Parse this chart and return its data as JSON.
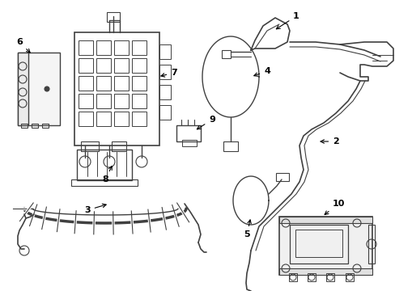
{
  "background_color": "#ffffff",
  "line_color": "#404040",
  "line_width": 1.0,
  "label_color": "#000000",
  "label_fontsize": 8,
  "arrow_color": "#000000"
}
